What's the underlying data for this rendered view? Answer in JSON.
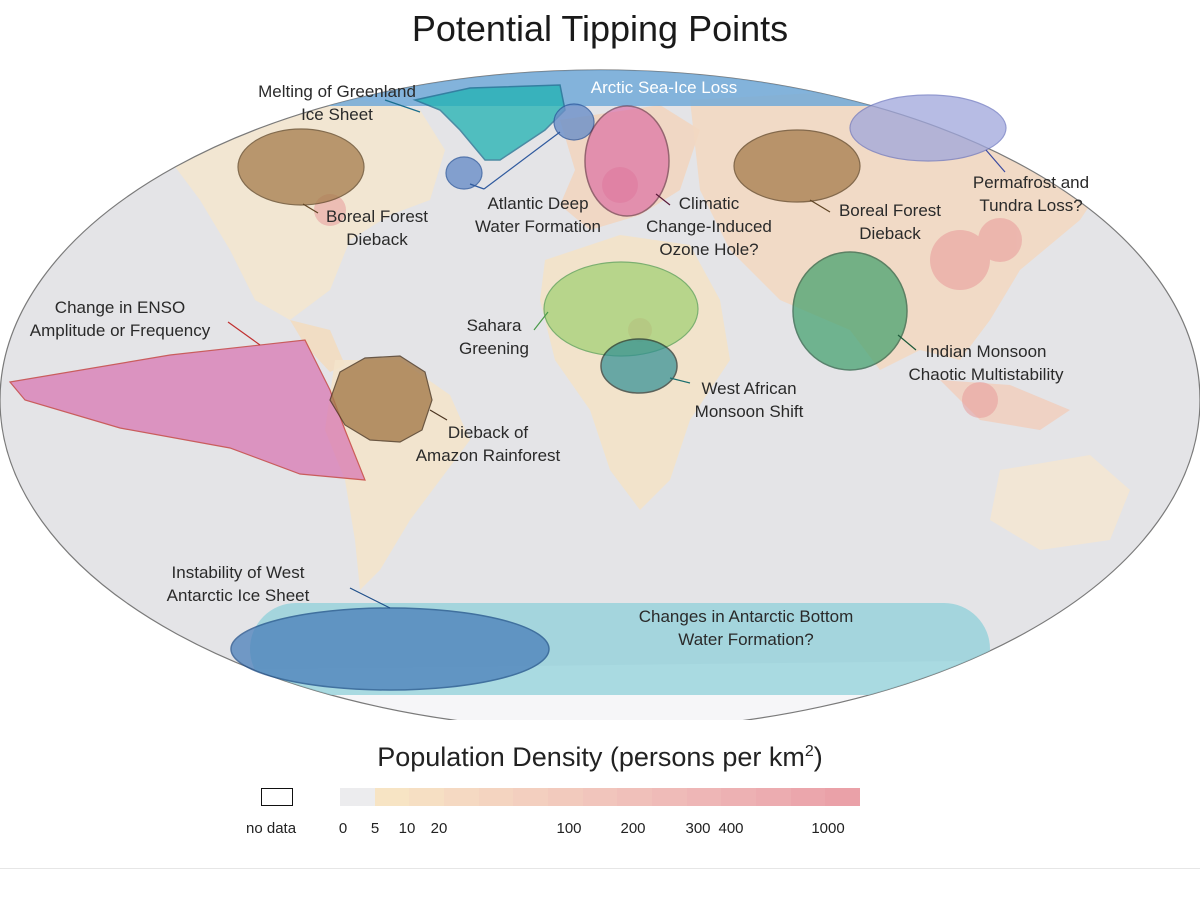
{
  "title": "Potential Tipping Points",
  "regions": {
    "arctic_sea_ice": "Arctic Sea-Ice Loss",
    "greenland_1": "Melting of Greenland",
    "greenland_2": "Ice Sheet",
    "boreal_na_1": "Boreal Forest",
    "boreal_na_2": "Dieback",
    "atlantic_1": "Atlantic Deep",
    "atlantic_2": "Water Formation",
    "ozone_1": "Climatic",
    "ozone_2": "Change-Induced",
    "ozone_3": "Ozone Hole?",
    "boreal_eu_1": "Boreal Forest",
    "boreal_eu_2": "Dieback",
    "permafrost_1": "Permafrost and",
    "permafrost_2": "Tundra Loss?",
    "enso_1": "Change in ENSO",
    "enso_2": "Amplitude or Frequency",
    "sahara_1": "Sahara",
    "sahara_2": "Greening",
    "indian_1": "Indian Monsoon",
    "indian_2": "Chaotic Multistability",
    "west_african_1": "West African",
    "west_african_2": "Monsoon Shift",
    "amazon_1": "Dieback of",
    "amazon_2": "Amazon Rainforest",
    "wais_1": "Instability of West",
    "wais_2": "Antarctic Ice Sheet",
    "aabw_1": "Changes in Antarctic Bottom",
    "aabw_2": "Water Formation?"
  },
  "colors": {
    "ocean": "#e3e3e6",
    "arctic": "#6aa6d8",
    "greenland": "#1fb2b2",
    "boreal": "#a57c4c",
    "atlantic": "#6a8fc8",
    "ozone": "#d9609f",
    "permafrost": "#9fa6dc",
    "enso": "#d878b3",
    "sahara": "#9fd070",
    "indian": "#3f9f6a",
    "west_african": "#2f8f94",
    "wais": "#4a7fba",
    "aabw": "#8fd0da"
  },
  "legend": {
    "title_main": "Population Density (persons per km",
    "title_sup": "2",
    "title_end": ")",
    "nodata": "no data",
    "ticks": [
      "0",
      "5",
      "10",
      "20",
      "100",
      "200",
      "300",
      "400",
      "1000"
    ]
  }
}
